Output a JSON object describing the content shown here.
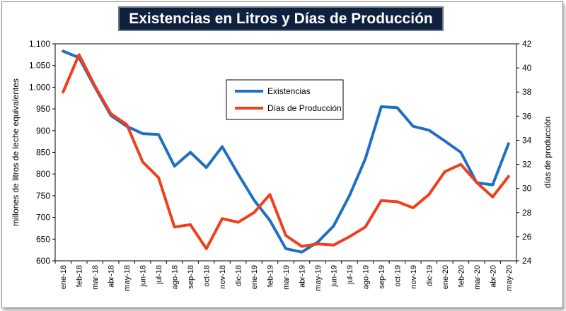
{
  "chart_data": {
    "type": "line",
    "title": "Existencias en Litros y Días de Producción",
    "ylabel_left": "millones de litros de leche equivalentes",
    "ylabel_right": "días de producción",
    "ylim_left": [
      600,
      1100
    ],
    "ylim_right": [
      24,
      42
    ],
    "yticks_left": [
      600,
      650,
      700,
      750,
      800,
      850,
      900,
      950,
      1000,
      1050,
      1100
    ],
    "yticks_left_labels": [
      "600",
      "650",
      "700",
      "750",
      "800",
      "850",
      "900",
      "950",
      "1.000",
      "1.050",
      "1.100"
    ],
    "yticks_right": [
      24,
      26,
      28,
      30,
      32,
      34,
      36,
      38,
      40,
      42
    ],
    "yticks_right_labels": [
      "24",
      "26",
      "28",
      "30",
      "32",
      "34",
      "36",
      "38",
      "40",
      "42"
    ],
    "categories": [
      "ene-18",
      "feb-18",
      "mar-18",
      "abr-18",
      "may-18",
      "jun-18",
      "jul-18",
      "ago-18",
      "sep-18",
      "oct-18",
      "nov-18",
      "dic-18",
      "ene-19",
      "feb-19",
      "mar-19",
      "abr-19",
      "may-19",
      "jun-19",
      "jul-19",
      "ago-19",
      "sep-19",
      "oct-19",
      "nov-19",
      "dic-19",
      "ene-20",
      "feb-20",
      "mar-20",
      "abr-20",
      "may-20"
    ],
    "series": [
      {
        "name": "Existencias",
        "axis": "left",
        "color": "#1f70c1",
        "values": [
          1083,
          1068,
          1000,
          935,
          910,
          893,
          891,
          818,
          850,
          815,
          863,
          800,
          740,
          693,
          628,
          620,
          643,
          680,
          750,
          835,
          955,
          953,
          910,
          901,
          876,
          850,
          780,
          775,
          870
        ]
      },
      {
        "name": "Días de Producción",
        "axis": "right",
        "color": "#f0401b",
        "values": [
          38.0,
          41.1,
          38.5,
          36.2,
          35.3,
          32.2,
          30.9,
          26.8,
          27.0,
          25.0,
          27.5,
          27.2,
          28.0,
          29.5,
          26.1,
          25.2,
          25.4,
          25.3,
          26.0,
          26.8,
          29.0,
          28.9,
          28.4,
          29.5,
          31.4,
          32.0,
          30.5,
          29.3,
          31.0
        ]
      }
    ],
    "legend": "inside-center"
  }
}
